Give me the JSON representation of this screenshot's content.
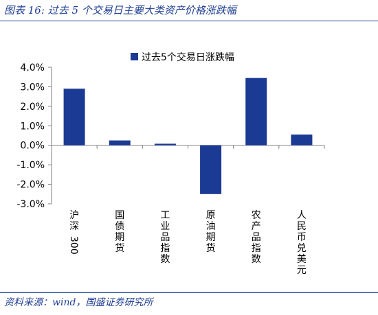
{
  "header": {
    "title": "图表 16:  过去 5 个交易日主要大类资产价格涨跌幅"
  },
  "footer": {
    "source": "资料来源：wind，国盛证券研究所"
  },
  "colors": {
    "bar": "#1b3a93",
    "axis": "#808080",
    "header": "#1f3f93"
  },
  "chart_data": {
    "type": "bar",
    "categories": [
      "沪深300",
      "国债期货",
      "工业品指数",
      "原油期货",
      "农产品指数",
      "人民币兑美元"
    ],
    "series": [
      {
        "name": "过去5个交易日涨跌幅",
        "values": [
          2.9,
          0.25,
          0.08,
          -2.5,
          3.45,
          0.55
        ]
      }
    ],
    "ylim": [
      -3.0,
      4.0
    ],
    "yticks": [
      "4.0%",
      "3.0%",
      "2.0%",
      "1.0%",
      "0.0%",
      "-1.0%",
      "-2.0%",
      "-3.0%"
    ],
    "ytick_values": [
      4,
      3,
      2,
      1,
      0,
      -1,
      -2,
      -3
    ],
    "legend_position": "top",
    "grid": false
  }
}
